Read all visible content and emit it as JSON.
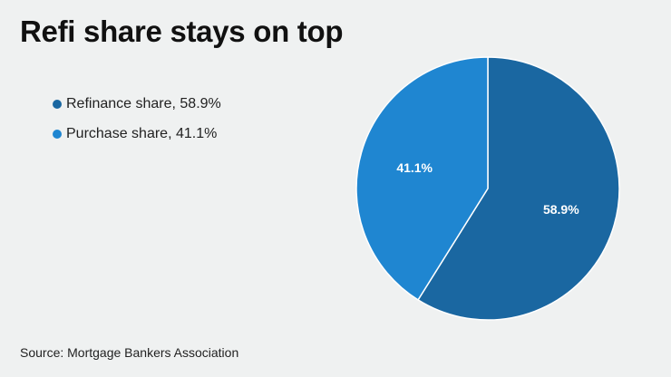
{
  "title": "Refi share stays on top",
  "source": "Source: Mortgage Bankers Association",
  "chart_data": {
    "type": "pie",
    "title": "Refi share stays on top",
    "slices": [
      {
        "name": "Refinance share",
        "value": 58.9,
        "label": "58.9%",
        "legend": "Refinance share, 58.9%",
        "color": "#1a67a1"
      },
      {
        "name": "Purchase share",
        "value": 41.1,
        "label": "41.1%",
        "legend": "Purchase share, 41.1%",
        "color": "#1f86d1"
      }
    ],
    "start": "12 o'clock",
    "direction": "clockwise",
    "legend_position": "left"
  }
}
